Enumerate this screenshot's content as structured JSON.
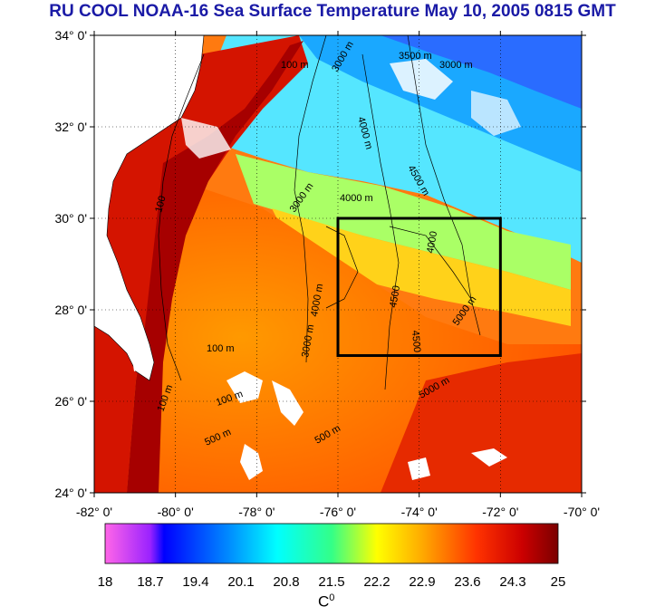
{
  "title": "RU COOL  NOAA-16 Sea Surface Temperature May 10, 2005 0815 GMT",
  "map": {
    "lat_labels": [
      "34° 0'",
      "32° 0'",
      "30° 0'",
      "28° 0'",
      "26° 0'",
      "24° 0'"
    ],
    "lon_labels": [
      "-82° 0'",
      "-80° 0'",
      "-78° 0'",
      "-76° 0'",
      "-74° 0'",
      "-72° 0'",
      "-70° 0'"
    ],
    "lat_range": [
      24,
      34
    ],
    "lon_range": [
      -82,
      -70
    ],
    "study_box": {
      "lon": [
        -76,
        -72
      ],
      "lat": [
        27,
        30
      ]
    },
    "contour_labels": [
      "100 m",
      "3000 m",
      "3500 m",
      "3000 m",
      "4000 m",
      "100",
      "4000 m",
      "3000 m",
      "4500 m",
      "4000",
      "4500",
      "5000 m",
      "4000 m",
      "3000 m",
      "100 m",
      "100 m",
      "500 m",
      "4500",
      "5000 m",
      "500 m",
      "100 m"
    ]
  },
  "colorbar": {
    "ticks": [
      "18",
      "18.7",
      "19.4",
      "20.1",
      "20.8",
      "21.5",
      "22.2",
      "22.9",
      "23.6",
      "24.3",
      "25"
    ],
    "unit": "C",
    "unit_sup": "0"
  }
}
